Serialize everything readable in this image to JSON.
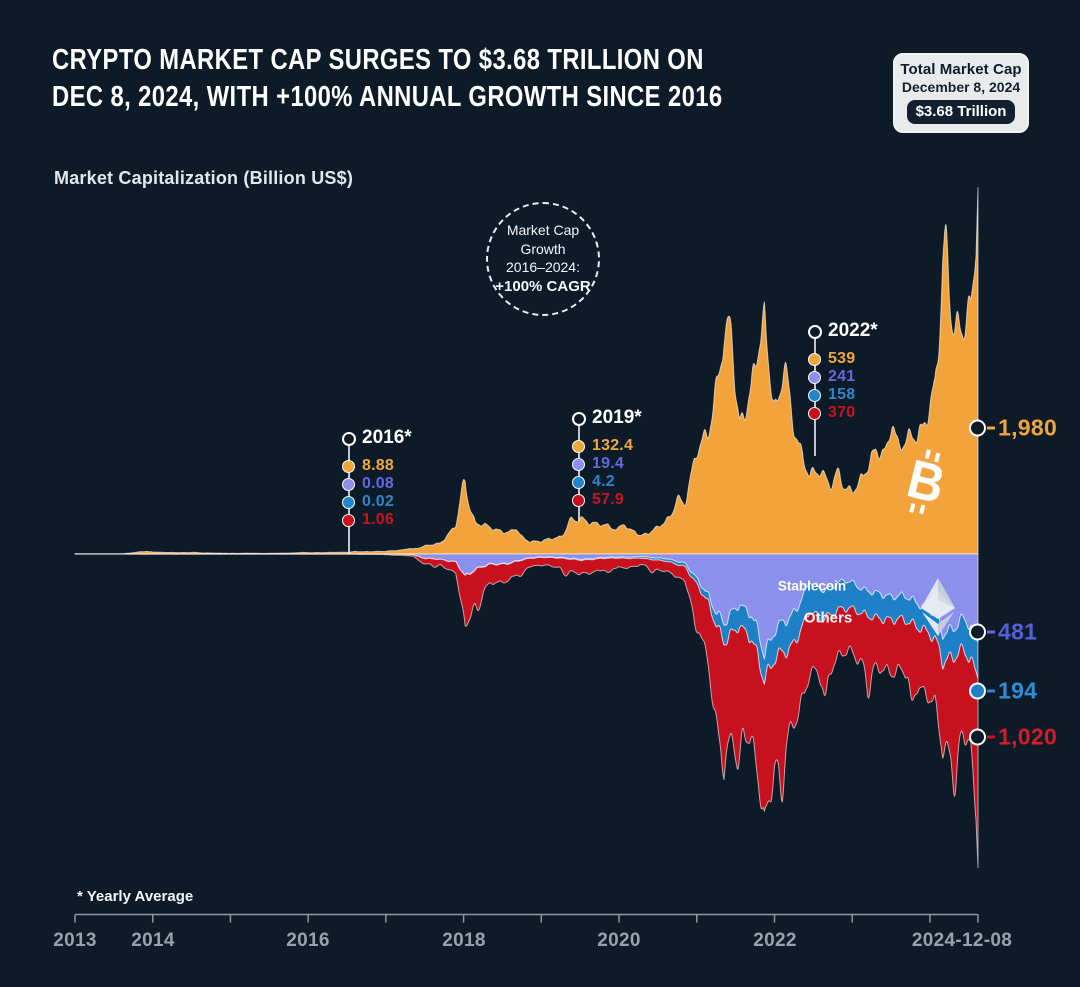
{
  "page": {
    "background": "#0D1B28"
  },
  "header": {
    "title_line1": "CRYPTO MARKET CAP SURGES TO $3.68 TRILLION ON",
    "title_line2": "DEC 8, 2024, WITH +100% ANNUAL GROWTH SINCE 2016"
  },
  "info_box": {
    "line1": "Total Market Cap",
    "line2": "December 8, 2024",
    "value": "$3.68 Trillion"
  },
  "subtitle": "Market Capitalization (Billion US$)",
  "cagr_badge": {
    "line1": "Market Cap",
    "line2": "Growth",
    "line3": "2016–2024:",
    "line4": "+100% CAGR"
  },
  "inline_labels": {
    "stablecoin": "Stablecoin",
    "others": "Others"
  },
  "icons": {
    "bitcoin_letter": "B"
  },
  "year_markers": [
    {
      "label": "2016*",
      "x_year": 2016.5,
      "values": [
        "8.88",
        "0.08",
        "0.02",
        "1.06"
      ]
    },
    {
      "label": "2019*",
      "x_year": 2019.5,
      "values": [
        "132.4",
        "19.4",
        "4.2",
        "57.9"
      ]
    },
    {
      "label": "2022*",
      "x_year": 2022.5,
      "values": [
        "539",
        "241",
        "158",
        "370"
      ]
    }
  ],
  "end_labels": [
    "1,980",
    "481",
    "194",
    "1,020"
  ],
  "footnote": "* Yearly Average",
  "x_axis": {
    "labels": [
      "2013",
      "2014",
      "2016",
      "2018",
      "2020",
      "2022",
      "2024-12-08"
    ]
  },
  "chart_data": {
    "type": "area",
    "variant": "streamgraph",
    "title": "Market Capitalization (Billion US$)",
    "unit": "billion USD",
    "x_range": [
      2013,
      2024.94
    ],
    "x_tick_years": [
      2013,
      2014,
      2015,
      2016,
      2017,
      2018,
      2019,
      2020,
      2021,
      2022,
      2023,
      2024
    ],
    "x_end_label": "2024-12-08",
    "layout_note": "Bitcoin plotted above the centerline; Ethereum, Stablecoin and Others stacked below; values in billion US$",
    "x": [
      2013.0,
      2013.6,
      2013.92,
      2014.1,
      2014.5,
      2015.0,
      2015.5,
      2016.0,
      2016.5,
      2017.0,
      2017.35,
      2017.5,
      2017.7,
      2017.9,
      2018.02,
      2018.15,
      2018.35,
      2018.6,
      2018.85,
      2019.0,
      2019.25,
      2019.5,
      2019.75,
      2020.0,
      2020.2,
      2020.28,
      2020.6,
      2020.85,
      2021.0,
      2021.15,
      2021.35,
      2021.55,
      2021.7,
      2021.87,
      2022.0,
      2022.2,
      2022.45,
      2022.6,
      2022.85,
      2023.0,
      2023.3,
      2023.6,
      2023.9,
      2024.1,
      2024.25,
      2024.45,
      2024.65,
      2024.8,
      2024.9,
      2024.94
    ],
    "series": [
      {
        "name": "Bitcoin",
        "color": "#F2A33C",
        "yearly_avg": {
          "2016": 8.88,
          "2019": 132.4,
          "2022": 539
        },
        "final_value_2024_12_08": 1980,
        "values": [
          1.3,
          1.1,
          13,
          9,
          7,
          3.5,
          3.4,
          7,
          9.5,
          15,
          25,
          42,
          60,
          150,
          330,
          170,
          140,
          115,
          70,
          68,
          95,
          190,
          160,
          130,
          120,
          95,
          170,
          280,
          540,
          680,
          1120,
          720,
          870,
          1280,
          800,
          760,
          420,
          440,
          330,
          340,
          540,
          560,
          690,
          880,
          1350,
          1250,
          1180,
          1320,
          1650,
          1980
        ]
      },
      {
        "name": "Ethereum",
        "color": "#8A90EC",
        "yearly_avg": {
          "2016": 0.08,
          "2019": 19.4,
          "2022": 241
        },
        "final_value_2024_12_08": 481,
        "values": [
          0,
          0,
          0,
          0,
          0,
          0.03,
          0.05,
          0.07,
          0.09,
          0.8,
          4,
          25,
          28,
          45,
          120,
          80,
          55,
          48,
          20,
          16,
          18,
          30,
          20,
          16,
          17,
          13,
          26,
          48,
          140,
          220,
          390,
          260,
          330,
          540,
          400,
          360,
          150,
          200,
          150,
          155,
          220,
          225,
          270,
          330,
          430,
          390,
          360,
          400,
          450,
          481
        ]
      },
      {
        "name": "Stablecoin",
        "color": "#1E81C8",
        "yearly_avg": {
          "2016": 0.02,
          "2019": 4.2,
          "2022": 158
        },
        "final_value_2024_12_08": 194,
        "values": [
          0,
          0,
          0,
          0,
          0,
          0.01,
          0.01,
          0.02,
          0.02,
          0.03,
          0.06,
          0.1,
          0.2,
          0.6,
          1.5,
          2,
          2.5,
          2.8,
          2.6,
          3,
          3.8,
          4.6,
          4.8,
          6,
          8,
          9,
          13,
          20,
          30,
          42,
          100,
          120,
          130,
          140,
          155,
          165,
          160,
          155,
          148,
          140,
          132,
          127,
          129,
          140,
          150,
          158,
          168,
          175,
          185,
          194
        ]
      },
      {
        "name": "Others",
        "color": "#C8111E",
        "yearly_avg": {
          "2016": 1.06,
          "2019": 57.9,
          "2022": 370
        },
        "final_value_2024_12_08": 1020,
        "values": [
          0.15,
          0.12,
          2,
          1.6,
          1.2,
          0.8,
          0.9,
          1.0,
          1.2,
          2,
          7,
          32,
          28,
          60,
          280,
          160,
          105,
          85,
          42,
          41,
          52,
          78,
          62,
          50,
          46,
          36,
          56,
          75,
          185,
          330,
          690,
          490,
          545,
          790,
          560,
          470,
          330,
          310,
          240,
          245,
          280,
          270,
          320,
          360,
          500,
          470,
          450,
          500,
          780,
          1020
        ]
      }
    ]
  }
}
